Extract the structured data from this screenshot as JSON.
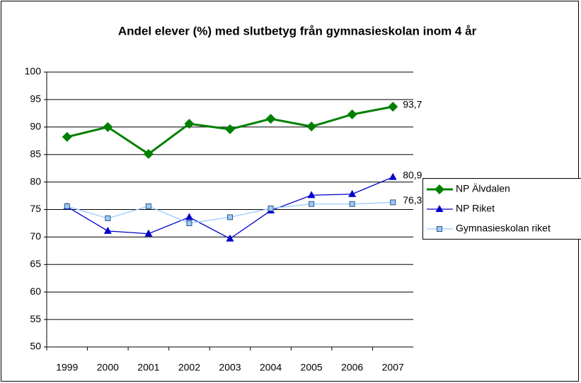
{
  "chart_data": {
    "type": "line",
    "title": "Andel elever (%) med slutbetyg från gymnasieskolan inom 4 år",
    "categories": [
      "1999",
      "2000",
      "2001",
      "2002",
      "2003",
      "2004",
      "2005",
      "2006",
      "2007"
    ],
    "series": [
      {
        "name": "NP Älvdalen",
        "color": "#008000",
        "marker": "diamond",
        "values": [
          88.2,
          90.0,
          85.1,
          90.6,
          89.6,
          91.5,
          90.1,
          92.3,
          93.7
        ],
        "value_labels": [
          null,
          null,
          null,
          null,
          null,
          null,
          null,
          null,
          "93,7"
        ]
      },
      {
        "name": "NP Riket",
        "color": "#0000cc",
        "marker": "triangle",
        "values": [
          75.5,
          71.1,
          70.6,
          73.6,
          69.7,
          74.8,
          77.6,
          77.8,
          80.9
        ],
        "value_labels": [
          null,
          null,
          null,
          null,
          null,
          null,
          null,
          null,
          "80,9"
        ]
      },
      {
        "name": "Gymnasieskolan riket",
        "color": "#99ccff",
        "marker": "square",
        "values": [
          75.6,
          73.4,
          75.6,
          72.5,
          73.6,
          75.2,
          76.0,
          76.0,
          76.3
        ],
        "value_labels": [
          null,
          null,
          null,
          null,
          null,
          null,
          null,
          null,
          "76,3"
        ]
      }
    ],
    "ylim": [
      50,
      100
    ],
    "yticks": [
      50,
      55,
      60,
      65,
      70,
      75,
      80,
      85,
      90,
      95,
      100
    ],
    "grid": true,
    "legend": "right"
  }
}
